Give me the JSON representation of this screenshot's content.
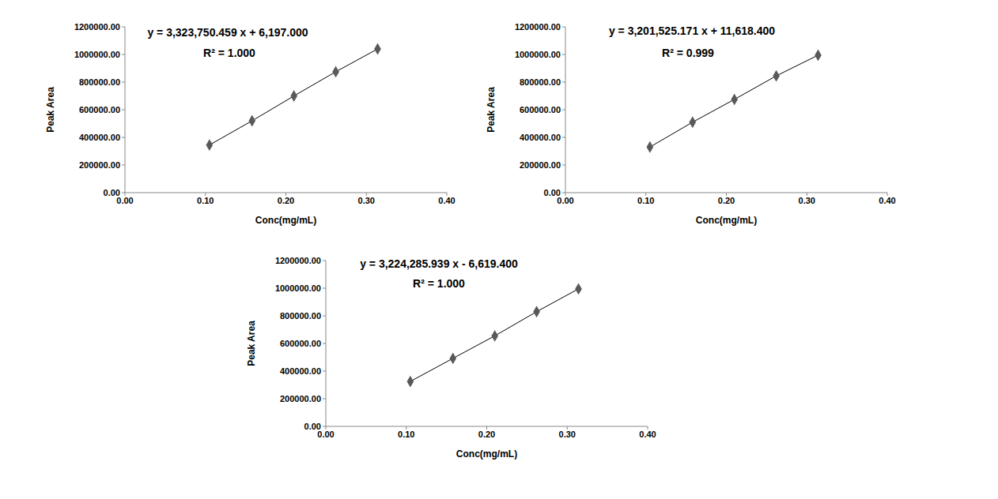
{
  "chart_data": [
    {
      "type": "scatter",
      "annotations": [
        "y = 3,323,750.459 x + 6,197.000",
        "R² = 1.000"
      ],
      "x_label": "Conc(mg/mL)",
      "y_label": "Peak Area",
      "x": [
        0.105,
        0.158,
        0.21,
        0.262,
        0.314
      ],
      "values": [
        345000,
        520000,
        700000,
        875000,
        1040000
      ],
      "color": "#595959",
      "marker": "diamond",
      "line_style": "solid",
      "xlim": [
        0,
        0.4
      ],
      "xticks": [
        {
          "value": 0,
          "label": "0.00"
        },
        {
          "value": 0.1,
          "label": "0.10"
        },
        {
          "value": 0.2,
          "label": "0.20"
        },
        {
          "value": 0.3,
          "label": "0.30"
        },
        {
          "value": 0.4,
          "label": "0.40"
        }
      ],
      "ylim": [
        0,
        1200000
      ],
      "yticks": [
        {
          "value": 0,
          "label": "0.00"
        },
        {
          "value": 200000,
          "label": "200000.00"
        },
        {
          "value": 400000,
          "label": "400000.00"
        },
        {
          "value": 600000,
          "label": "600000.00"
        },
        {
          "value": 800000,
          "label": "800000.00"
        },
        {
          "value": 1000000,
          "label": "1000000.00"
        },
        {
          "value": 1200000,
          "label": "1200000.00"
        }
      ],
      "grid": false
    },
    {
      "type": "scatter",
      "annotations": [
        "y = 3,201,525.171 x + 11,618.400",
        "R² = 0.999"
      ],
      "x_label": "Conc(mg/mL)",
      "y_label": "Peak Area",
      "x": [
        0.105,
        0.158,
        0.21,
        0.262,
        0.314
      ],
      "values": [
        330000,
        510000,
        675000,
        845000,
        995000
      ],
      "color": "#595959",
      "marker": "diamond",
      "line_style": "solid",
      "xlim": [
        0,
        0.4
      ],
      "xticks": [
        {
          "value": 0,
          "label": "0.00"
        },
        {
          "value": 0.1,
          "label": "0.10"
        },
        {
          "value": 0.2,
          "label": "0.20"
        },
        {
          "value": 0.3,
          "label": "0.30"
        },
        {
          "value": 0.4,
          "label": "0.40"
        }
      ],
      "ylim": [
        0,
        1200000
      ],
      "yticks": [
        {
          "value": 0,
          "label": "0.00"
        },
        {
          "value": 200000,
          "label": "200000.00"
        },
        {
          "value": 400000,
          "label": "400000.00"
        },
        {
          "value": 600000,
          "label": "600000.00"
        },
        {
          "value": 800000,
          "label": "800000.00"
        },
        {
          "value": 1000000,
          "label": "1000000.00"
        },
        {
          "value": 1200000,
          "label": "1200000.00"
        }
      ],
      "grid": false
    },
    {
      "type": "scatter",
      "annotations": [
        "y = 3,224,285.939 x - 6,619.400",
        "R² = 1.000"
      ],
      "x_label": "Conc(mg/mL)",
      "y_label": "Peak Area",
      "x": [
        0.105,
        0.158,
        0.21,
        0.262,
        0.314
      ],
      "values": [
        325000,
        492000,
        655000,
        830000,
        995000
      ],
      "color": "#595959",
      "marker": "diamond",
      "line_style": "solid",
      "xlim": [
        0,
        0.4
      ],
      "xticks": [
        {
          "value": 0,
          "label": "0.00"
        },
        {
          "value": 0.1,
          "label": "0.10"
        },
        {
          "value": 0.2,
          "label": "0.20"
        },
        {
          "value": 0.3,
          "label": "0.30"
        },
        {
          "value": 0.4,
          "label": "0.40"
        }
      ],
      "ylim": [
        0,
        1200000
      ],
      "yticks": [
        {
          "value": 0,
          "label": "0.00"
        },
        {
          "value": 200000,
          "label": "200000.00"
        },
        {
          "value": 400000,
          "label": "400000.00"
        },
        {
          "value": 600000,
          "label": "600000.00"
        },
        {
          "value": 800000,
          "label": "800000.00"
        },
        {
          "value": 1000000,
          "label": "1000000.00"
        },
        {
          "value": 1200000,
          "label": "1200000.00"
        }
      ],
      "grid": false
    }
  ]
}
